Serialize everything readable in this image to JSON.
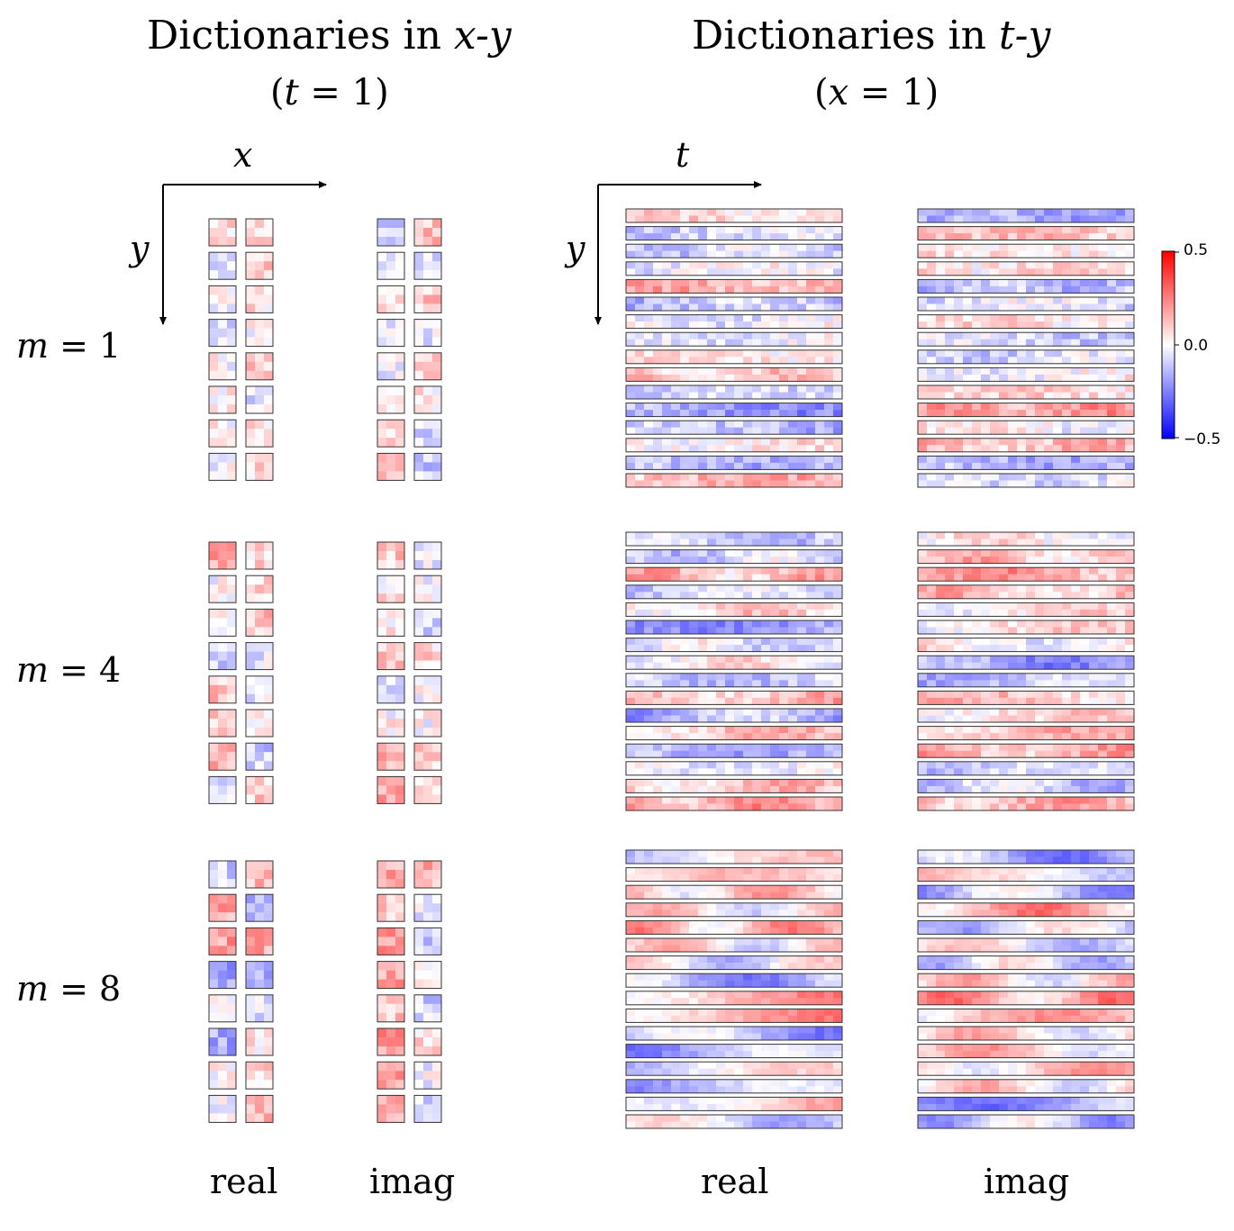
{
  "left_panel": {
    "title_prefix": "Dictionaries in ",
    "title_axes": "x-y",
    "subtitle_open": "(",
    "subtitle_var": "t",
    "subtitle_rest": " = 1)",
    "axis_h": "x",
    "axis_v": "y"
  },
  "right_panel": {
    "title_prefix": "Dictionaries in ",
    "title_axes": "t-y",
    "subtitle_open": "(",
    "subtitle_var": "x",
    "subtitle_rest": " = 1)",
    "axis_h": "t",
    "axis_v": "y"
  },
  "rows": [
    {
      "var": "m",
      "eq": " = 1"
    },
    {
      "var": "m",
      "eq": " = 4"
    },
    {
      "var": "m",
      "eq": " = 8"
    }
  ],
  "column_labels": {
    "xy_real": "real",
    "xy_imag": "imag",
    "ty_real": "real",
    "ty_imag": "imag"
  },
  "colorbar": {
    "max_label": "0.5",
    "mid_label": "0.0",
    "min_label": "−0.5",
    "max_value": 0.5,
    "min_value": -0.5,
    "colormap": "bwr",
    "color_high": "#ff0000",
    "color_mid": "#ffffff",
    "color_low": "#0000ff"
  }
}
